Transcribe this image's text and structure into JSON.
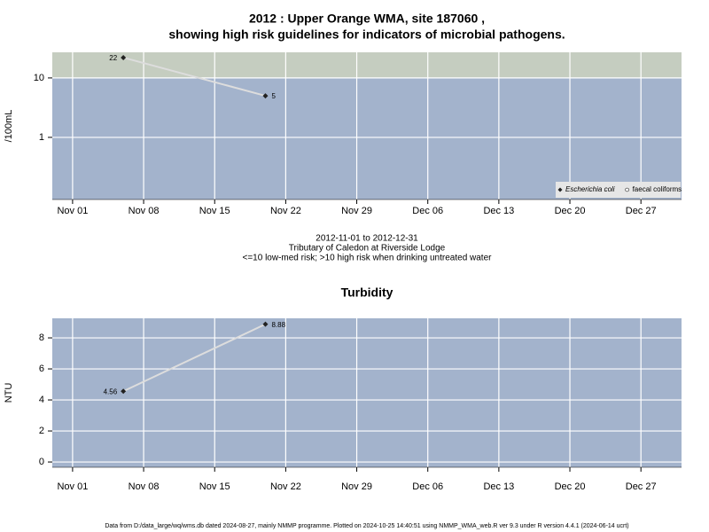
{
  "chart_data": [
    {
      "type": "line",
      "title": [
        "2012 : Upper Orange WMA, site 187060 ,",
        "showing high risk guidelines for indicators of microbial pathogens."
      ],
      "y_label": "/100mL",
      "x": [
        "Nov 06",
        "Nov 20"
      ],
      "xlim": [
        "Oct 30",
        "Dec 31"
      ],
      "xticks": [
        "Nov 01",
        "Nov 08",
        "Nov 15",
        "Nov 22",
        "Nov 29",
        "Dec 06",
        "Dec 13",
        "Dec 20",
        "Dec 27"
      ],
      "log_y": true,
      "ylim": [
        0.09,
        27
      ],
      "yticks": [
        1,
        10
      ],
      "threshold": 10,
      "background": "#a3b3cc",
      "threshold_color": "#c5cdc0",
      "grid": true,
      "legend": "bottom-right",
      "series": [
        {
          "name": "Escherichia coli",
          "marker": "diamond",
          "color": "#222222",
          "line_color": "#dddddd",
          "values": [
            22,
            5
          ]
        },
        {
          "name": "faecal coliforms",
          "marker": "circle",
          "color": "#ffffff",
          "line_color": "#dddddd",
          "values": [
            null,
            null
          ]
        }
      ],
      "notes": [
        "2012-11-01 to 2012-12-31",
        "Tributary of Caledon at Riverside Lodge",
        "<=10 low-med risk; >10 high risk when drinking untreated water"
      ]
    },
    {
      "type": "line",
      "title": [
        "Turbidity"
      ],
      "y_label": "NTU",
      "x": [
        "Nov 06",
        "Nov 20"
      ],
      "xlim": [
        "Oct 30",
        "Dec 31"
      ],
      "xticks": [
        "Nov 01",
        "Nov 08",
        "Nov 15",
        "Nov 22",
        "Nov 29",
        "Dec 06",
        "Dec 13",
        "Dec 20",
        "Dec 27"
      ],
      "log_y": false,
      "ylim": [
        -0.34,
        9.26
      ],
      "yticks": [
        0,
        2,
        4,
        6,
        8
      ],
      "background": "#a3b3cc",
      "grid": true,
      "series": [
        {
          "marker": "diamond",
          "color": "#222222",
          "line_color": "#dddddd",
          "values": [
            4.56,
            8.88
          ]
        }
      ]
    }
  ],
  "footer": "Data from D:/data_large/wq/wms.db dated 2024-08-27, mainly NMMP programme. Plotted on 2024-10-25 14:40:51 using NMMP_WMA_web.R ver 9.3 under R version 4.4.1 (2024-06-14 ucrt)"
}
